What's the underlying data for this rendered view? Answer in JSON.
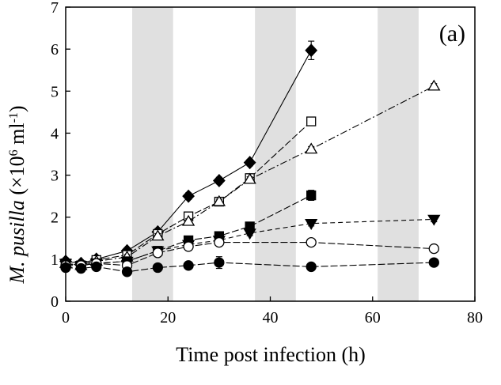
{
  "chart_data": {
    "type": "line",
    "panel_label": "(a)",
    "xlabel": "Time post infection (h)",
    "ylabel_parts": [
      "M. pusilla",
      " (×10",
      "6",
      " ml",
      "-1",
      ")"
    ],
    "xlim": [
      0,
      80
    ],
    "ylim": [
      0,
      7
    ],
    "xticks": [
      "0",
      "20",
      "40",
      "60",
      "80"
    ],
    "yticks": [
      "0",
      "1",
      "2",
      "3",
      "4",
      "5",
      "6",
      "7"
    ],
    "dark_periods": [
      [
        13,
        21
      ],
      [
        37,
        45
      ],
      [
        61,
        69
      ]
    ],
    "colors": {
      "line": "#000000",
      "shade": "#e0e0e0"
    },
    "grid": false,
    "series": [
      {
        "marker": "diamond",
        "fill": "black",
        "dash": "solid",
        "x": [
          0,
          3,
          6,
          12,
          18,
          24,
          30,
          36,
          48
        ],
        "y": [
          0.95,
          0.9,
          1.0,
          1.2,
          1.65,
          2.5,
          2.87,
          3.3,
          5.97
        ],
        "err": [
          0.08,
          0.06,
          0.08,
          0.07,
          0.08,
          0.08,
          0.08,
          0.08,
          0.22
        ]
      },
      {
        "marker": "square",
        "fill": "white",
        "dash": "longdash",
        "x": [
          0,
          3,
          6,
          12,
          18,
          24,
          30,
          36,
          48
        ],
        "y": [
          0.9,
          0.85,
          0.98,
          1.1,
          1.6,
          2.02,
          2.37,
          2.93,
          4.28
        ],
        "err": [
          0.08,
          0.06,
          0.08,
          0.07,
          0.08,
          0.08,
          0.07,
          0.08,
          0.1
        ]
      },
      {
        "marker": "triangle-up",
        "fill": "white",
        "dash": "dashdot",
        "x": [
          0,
          3,
          6,
          12,
          18,
          24,
          30,
          36,
          48,
          72
        ],
        "y": [
          0.9,
          0.85,
          0.95,
          1.05,
          1.55,
          1.9,
          2.37,
          2.9,
          3.62,
          5.12
        ],
        "err": [
          0.06,
          0.06,
          0.06,
          0.06,
          0.06,
          0.06,
          0.06,
          0.06,
          0.06,
          0.06
        ]
      },
      {
        "marker": "square",
        "fill": "black",
        "dash": "longdash",
        "x": [
          0,
          3,
          6,
          12,
          18,
          24,
          30,
          36,
          48
        ],
        "y": [
          0.9,
          0.85,
          0.9,
          0.95,
          1.2,
          1.45,
          1.55,
          1.78,
          2.52
        ],
        "err": [
          0.07,
          0.06,
          0.06,
          0.06,
          0.06,
          0.06,
          0.06,
          0.1,
          0.12
        ]
      },
      {
        "marker": "triangle-down",
        "fill": "black",
        "dash": "dash",
        "x": [
          0,
          3,
          6,
          12,
          18,
          24,
          30,
          36,
          48,
          72
        ],
        "y": [
          0.9,
          0.85,
          0.9,
          0.95,
          1.2,
          1.35,
          1.45,
          1.62,
          1.85,
          1.95
        ],
        "err": [
          0.06,
          0.06,
          0.06,
          0.06,
          0.06,
          0.06,
          0.06,
          0.06,
          0.06,
          0.06
        ]
      },
      {
        "marker": "circle",
        "fill": "white",
        "dash": "longdash",
        "x": [
          0,
          3,
          6,
          12,
          18,
          24,
          30,
          48,
          72
        ],
        "y": [
          0.85,
          0.85,
          0.9,
          0.85,
          1.15,
          1.3,
          1.4,
          1.4,
          1.25
        ],
        "err": [
          0.06,
          0.06,
          0.06,
          0.06,
          0.06,
          0.06,
          0.08,
          0.07,
          0.07
        ]
      },
      {
        "marker": "circle",
        "fill": "black",
        "dash": "longdash",
        "x": [
          0,
          3,
          6,
          12,
          18,
          24,
          30,
          48,
          72
        ],
        "y": [
          0.8,
          0.78,
          0.82,
          0.7,
          0.8,
          0.85,
          0.92,
          0.82,
          0.92
        ],
        "err": [
          0.06,
          0.06,
          0.06,
          0.06,
          0.08,
          0.06,
          0.14,
          0.06,
          0.05
        ]
      }
    ]
  }
}
